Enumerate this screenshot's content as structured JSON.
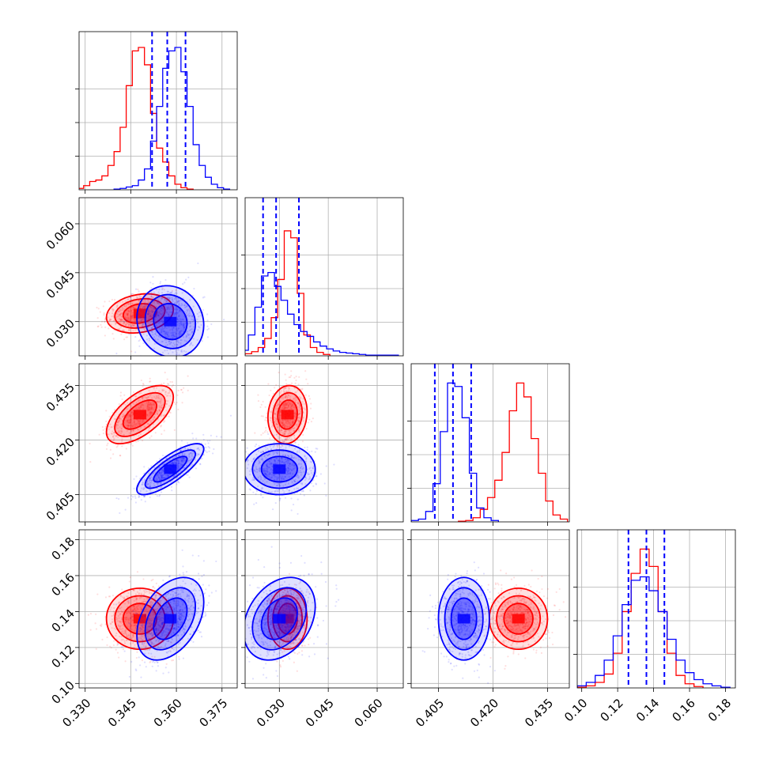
{
  "chart_data": {
    "type": "corner",
    "grid": true,
    "n_params": 4,
    "series": [
      {
        "color": "#ff0000",
        "mean": [
          0.348,
          0.0325,
          0.427,
          0.136
        ],
        "sd": [
          0.0055,
          0.003,
          0.004,
          0.0085
        ],
        "corr": [
          [
            1,
            0.2,
            0.6,
            0.0
          ],
          [
            0.2,
            1,
            0.1,
            0.0
          ],
          [
            0.6,
            0.1,
            1,
            0.0
          ],
          [
            0.0,
            0.0,
            0.0,
            1
          ]
        ],
        "hist": [
          {
            "x": [
              0.3285,
              0.3305,
              0.3325,
              0.3345,
              0.3365,
              0.3385,
              0.3405,
              0.3425,
              0.3445,
              0.3465,
              0.3485,
              0.3505,
              0.3525,
              0.3545,
              0.3565,
              0.3585,
              0.3605,
              0.3625,
              0.3645
            ],
            "y": [
              2,
              6,
              12,
              14,
              20,
              35,
              55,
              90,
              150,
              200,
              205,
              180,
              110,
              60,
              40,
              20,
              8,
              3,
              1
            ]
          },
          {
            "x": [
              0.0185,
              0.0205,
              0.0225,
              0.0245,
              0.0265,
              0.0285,
              0.0305,
              0.0325,
              0.0345,
              0.0365,
              0.0385,
              0.0405,
              0.0425,
              0.0445
            ],
            "y": [
              2,
              3,
              6,
              12,
              25,
              55,
              110,
              180,
              170,
              90,
              30,
              12,
              5,
              2
            ]
          },
          {
            "x": [
              0.4115,
              0.4135,
              0.4155,
              0.4175,
              0.4195,
              0.4215,
              0.4235,
              0.4255,
              0.4275,
              0.4295,
              0.4315,
              0.4335,
              0.4355,
              0.4375,
              0.4395
            ],
            "y": [
              1,
              2,
              6,
              18,
              35,
              60,
              100,
              160,
              200,
              180,
              120,
              70,
              30,
              10,
              4
            ]
          },
          {
            "x": [
              0.1,
              0.105,
              0.11,
              0.115,
              0.12,
              0.125,
              0.13,
              0.135,
              0.14,
              0.145,
              0.15,
              0.155,
              0.16,
              0.165
            ],
            "y": [
              1,
              3,
              8,
              20,
              50,
              110,
              165,
              200,
              175,
              110,
              50,
              18,
              6,
              2
            ]
          }
        ]
      },
      {
        "color": "#0000ff",
        "mean": [
          0.358,
          0.03,
          0.412,
          0.136
        ],
        "sd": [
          0.0055,
          0.0055,
          0.0035,
          0.0115
        ],
        "corr": [
          [
            1,
            -0.1,
            0.8,
            0.4
          ],
          [
            -0.1,
            1,
            0.0,
            0.3
          ],
          [
            0.8,
            0.0,
            1,
            0.0
          ],
          [
            0.4,
            0.3,
            0.0,
            1
          ]
        ],
        "quantiles": [
          [
            0.352,
            0.357,
            0.363
          ],
          [
            0.025,
            0.029,
            0.036
          ],
          [
            0.404,
            0.409,
            0.414
          ],
          [
            0.126,
            0.136,
            0.146
          ]
        ],
        "hist": [
          {
            "x": [
              0.3405,
              0.3425,
              0.3445,
              0.3465,
              0.3485,
              0.3505,
              0.3525,
              0.3545,
              0.3565,
              0.3585,
              0.3605,
              0.3625,
              0.3645,
              0.3665,
              0.3685,
              0.3705,
              0.3725,
              0.3745,
              0.3765
            ],
            "y": [
              1,
              2,
              4,
              6,
              14,
              30,
              70,
              120,
              175,
              200,
              205,
              170,
              120,
              65,
              35,
              18,
              8,
              3,
              1
            ]
          },
          {
            "x": [
              0.0195,
              0.0215,
              0.0235,
              0.0255,
              0.0275,
              0.0295,
              0.0315,
              0.0335,
              0.0355,
              0.0375,
              0.0395,
              0.0415,
              0.0435,
              0.0455,
              0.0475,
              0.0495,
              0.0515,
              0.0535,
              0.0555,
              0.0575,
              0.0595,
              0.0615,
              0.0635,
              0.0655
            ],
            "y": [
              8,
              30,
              70,
              115,
              120,
              100,
              80,
              60,
              45,
              35,
              28,
              20,
              14,
              10,
              7,
              5,
              4,
              3,
              2,
              1,
              1,
              1,
              1,
              1
            ]
          },
          {
            "x": [
              0.3965,
              0.3985,
              0.4005,
              0.4025,
              0.4045,
              0.4065,
              0.4085,
              0.4105,
              0.4125,
              0.4145,
              0.4165,
              0.4185,
              0.4205
            ],
            "y": [
              1,
              2,
              4,
              15,
              55,
              130,
              200,
              195,
              150,
              70,
              20,
              6,
              2
            ]
          },
          {
            "x": [
              0.09,
              0.095,
              0.1,
              0.105,
              0.11,
              0.115,
              0.12,
              0.125,
              0.13,
              0.135,
              0.14,
              0.145,
              0.15,
              0.155,
              0.16,
              0.165,
              0.17,
              0.175,
              0.18
            ],
            "y": [
              1,
              1,
              3,
              8,
              18,
              40,
              75,
              120,
              155,
              160,
              140,
              110,
              70,
              40,
              22,
              12,
              6,
              3,
              1
            ]
          }
        ]
      }
    ],
    "axes": {
      "ranges": [
        [
          0.328,
          0.38
        ],
        [
          0.0195,
          0.068
        ],
        [
          0.3975,
          0.441
        ],
        [
          0.0975,
          0.1855
        ]
      ],
      "ticks": [
        [
          0.33,
          0.345,
          0.36,
          0.375
        ],
        [
          0.03,
          0.045,
          0.06
        ],
        [
          0.405,
          0.42,
          0.435
        ],
        [
          0.1,
          0.12,
          0.14,
          0.16,
          0.18
        ]
      ],
      "tick_labels": [
        [
          "0.330",
          "0.345",
          "0.360",
          "0.375"
        ],
        [
          "0.030",
          "0.045",
          "0.060"
        ],
        [
          "0.405",
          "0.420",
          "0.435"
        ],
        [
          "0.10",
          "0.12",
          "0.14",
          "0.16",
          "0.18"
        ]
      ]
    }
  }
}
